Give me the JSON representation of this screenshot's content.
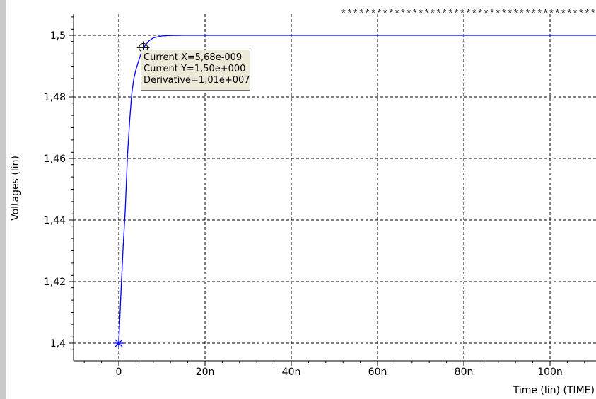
{
  "chart_data": {
    "type": "line",
    "title": "*******************************************",
    "xlabel": "Time (lin) (TIME)",
    "ylabel": "Voltages (lin)",
    "x_ticks": [
      "0",
      "20n",
      "40n",
      "60n",
      "80n",
      "100n"
    ],
    "y_ticks": [
      "1,5",
      "1,48",
      "1,46",
      "1,44",
      "1,42",
      "1,4"
    ],
    "xlim": [
      -1e-08,
      1.12e-07
    ],
    "ylim": [
      1.398,
      1.506
    ],
    "grid": true,
    "series": [
      {
        "color": "#0000ff",
        "x": [
          0,
          5e-10,
          1e-09,
          1.5e-09,
          2e-09,
          2.5e-09,
          3e-09,
          3.5e-09,
          4e-09,
          5e-09,
          6e-09,
          7e-09,
          8e-09,
          1e-08,
          1.2e-08,
          1.5e-08,
          2e-08,
          4e-08,
          1.12e-07
        ],
        "y": [
          1.4,
          1.4165,
          1.431,
          1.4435,
          1.4605,
          1.472,
          1.481,
          1.486,
          1.489,
          1.4935,
          1.4965,
          1.4982,
          1.4992,
          1.4998,
          1.49995,
          1.5,
          1.5,
          1.5,
          1.5
        ]
      }
    ],
    "markers": [
      {
        "shape": "asterisk",
        "x": 0,
        "y": 1.4
      },
      {
        "shape": "crosshair-circle",
        "x": 5.68e-09,
        "y": 1.496
      }
    ]
  },
  "tooltip": {
    "line1": "Current X=5,68e-009",
    "line2": "Current Y=1,50e+000",
    "line3": "Derivative=1,01e+007"
  }
}
